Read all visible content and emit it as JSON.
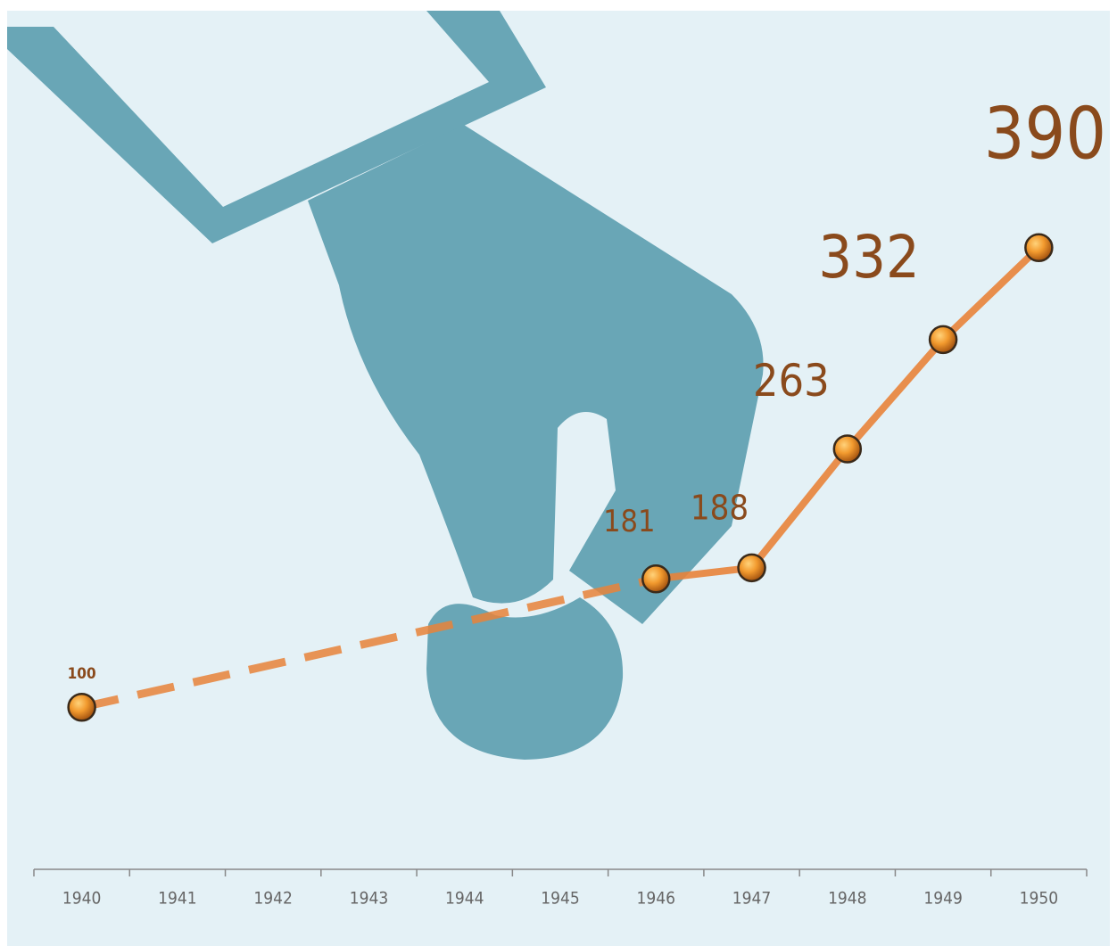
{
  "chart_data": {
    "type": "line",
    "categories": [
      "1940",
      "1941",
      "1942",
      "1943",
      "1944",
      "1945",
      "1946",
      "1947",
      "1948",
      "1949",
      "1950"
    ],
    "series": [
      {
        "color": "#e8833a",
        "values": [
          100,
          null,
          null,
          null,
          null,
          null,
          181,
          188,
          263,
          332,
          390
        ]
      }
    ],
    "ylim": [
      0,
      535
    ]
  }
}
